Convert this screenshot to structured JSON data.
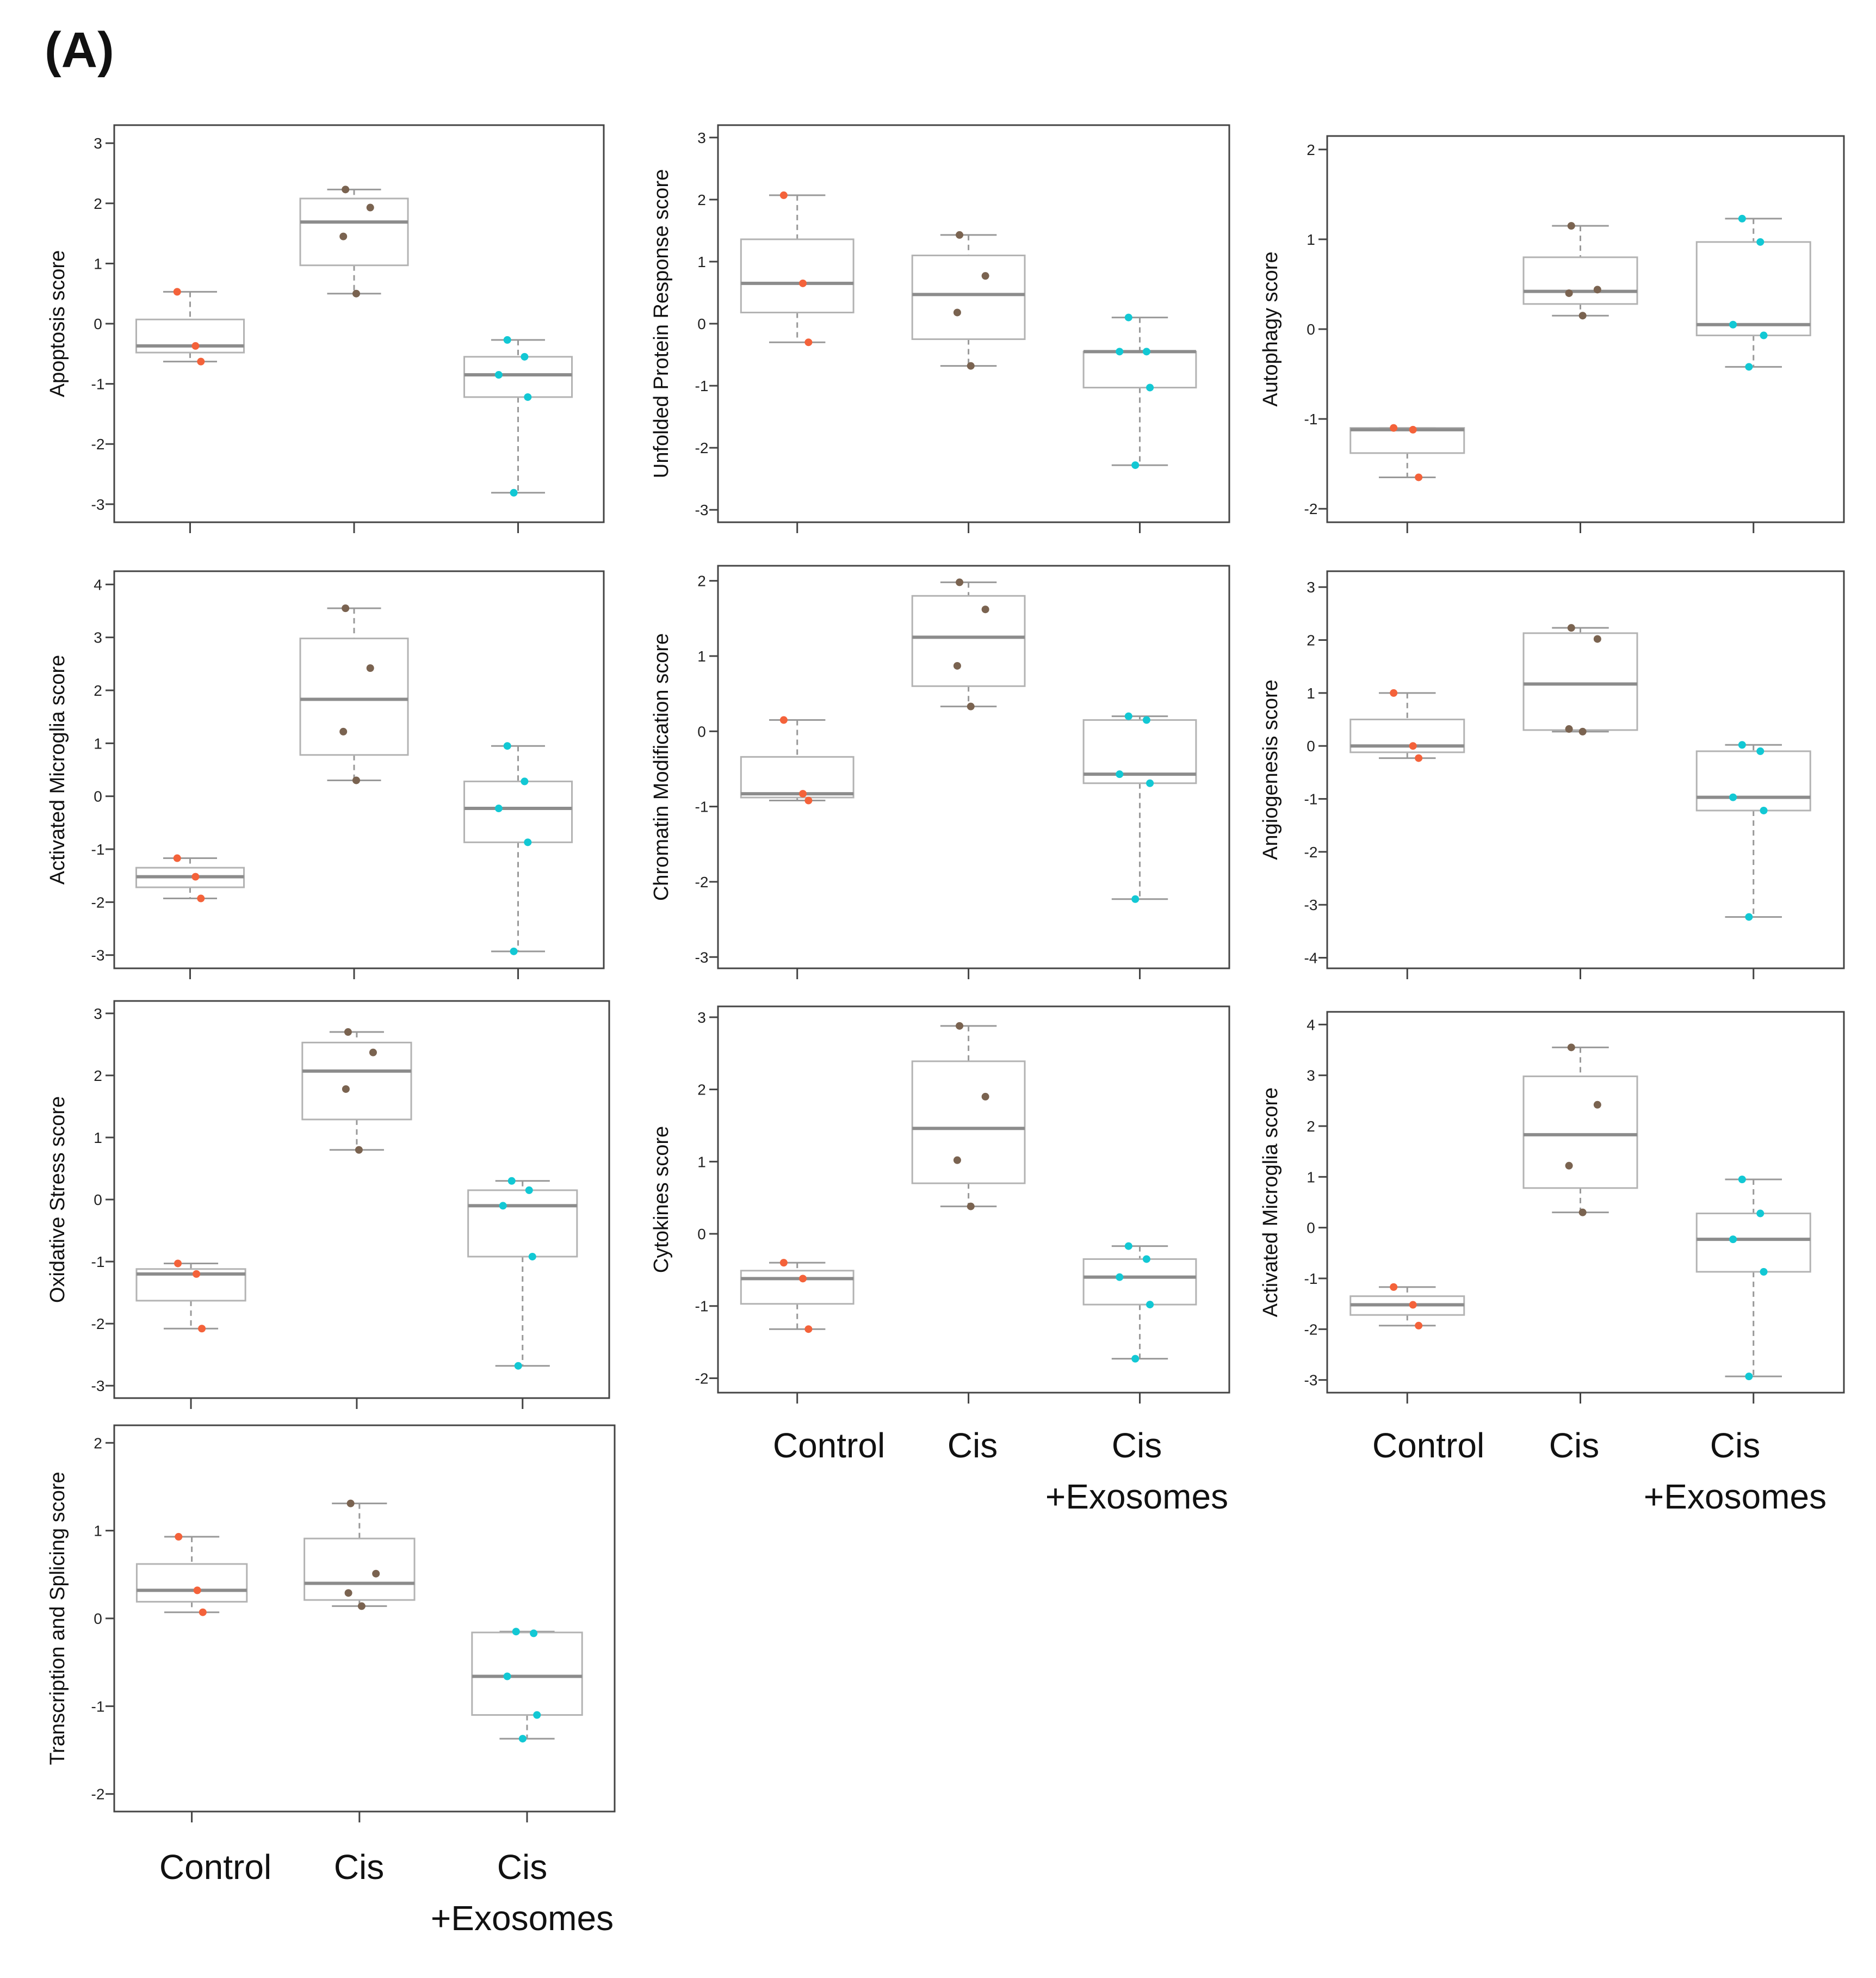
{
  "figure_label": "(A)",
  "colors": {
    "control": "#f4623a",
    "cis": "#7a6350",
    "exo": "#12c8d4",
    "box": "#b3b3b3",
    "median": "#8c8c8c",
    "axis": "#444444"
  },
  "category_labels": {
    "control": "Control",
    "cis": "Cis",
    "exo_line1": "Cis",
    "exo_line2": "+Exosomes"
  },
  "chart_data": [
    {
      "type": "box",
      "ylabel": "Apoptosis score",
      "yticks": [
        -3,
        -2,
        -1,
        0,
        1,
        2,
        3
      ],
      "ylim": [
        -3.3,
        3.3
      ],
      "categories": [
        "Control",
        "Cis",
        "Cis +Exosomes"
      ],
      "groups": [
        {
          "name": "Control",
          "points": [
            0.53,
            -0.37,
            -0.63
          ],
          "q1": -0.48,
          "median": -0.37,
          "q3": 0.07,
          "whisker_low": -0.63,
          "whisker_high": 0.53
        },
        {
          "name": "Cis",
          "points": [
            2.23,
            1.93,
            1.45,
            0.5
          ],
          "q1": 0.97,
          "median": 1.69,
          "q3": 2.08,
          "whisker_low": 0.5,
          "whisker_high": 2.23
        },
        {
          "name": "Cis +Exosomes",
          "points": [
            -0.27,
            -0.55,
            -0.85,
            -1.22,
            -2.81
          ],
          "q1": -1.22,
          "median": -0.85,
          "q3": -0.55,
          "whisker_low": -2.81,
          "whisker_high": -0.27
        }
      ]
    },
    {
      "type": "box",
      "ylabel": "Unfolded Protein Response score",
      "yticks": [
        -3,
        -2,
        -1,
        0,
        1,
        2,
        3
      ],
      "ylim": [
        -3.2,
        3.2
      ],
      "categories": [
        "Control",
        "Cis",
        "Cis +Exosomes"
      ],
      "groups": [
        {
          "name": "Control",
          "points": [
            2.07,
            0.65,
            -0.3
          ],
          "q1": 0.18,
          "median": 0.65,
          "q3": 1.36,
          "whisker_low": -0.3,
          "whisker_high": 2.07
        },
        {
          "name": "Cis",
          "points": [
            1.43,
            0.77,
            0.18,
            -0.68
          ],
          "q1": -0.25,
          "median": 0.47,
          "q3": 1.1,
          "whisker_low": -0.68,
          "whisker_high": 1.43
        },
        {
          "name": "Cis +Exosomes",
          "points": [
            0.1,
            -0.45,
            -0.45,
            -1.03,
            -2.28
          ],
          "q1": -1.03,
          "median": -0.45,
          "q3": -0.45,
          "whisker_low": -2.28,
          "whisker_high": 0.1
        }
      ]
    },
    {
      "type": "box",
      "ylabel": "Autophagy score",
      "yticks": [
        -2,
        -1,
        0,
        1,
        2
      ],
      "ylim": [
        -2.15,
        2.15
      ],
      "categories": [
        "Control",
        "Cis",
        "Cis +Exosomes"
      ],
      "groups": [
        {
          "name": "Control",
          "points": [
            -1.1,
            -1.12,
            -1.65
          ],
          "q1": -1.38,
          "median": -1.12,
          "q3": -1.1,
          "whisker_low": -1.65,
          "whisker_high": -1.1
        },
        {
          "name": "Cis",
          "points": [
            1.15,
            0.44,
            0.4,
            0.15
          ],
          "q1": 0.28,
          "median": 0.42,
          "q3": 0.8,
          "whisker_low": 0.15,
          "whisker_high": 1.15
        },
        {
          "name": "Cis +Exosomes",
          "points": [
            1.23,
            0.97,
            0.05,
            -0.07,
            -0.42
          ],
          "q1": -0.07,
          "median": 0.05,
          "q3": 0.97,
          "whisker_low": -0.42,
          "whisker_high": 1.23
        }
      ]
    },
    {
      "type": "box",
      "ylabel": "Activated Microglia score",
      "yticks": [
        -3,
        -2,
        -1,
        0,
        1,
        2,
        3,
        4
      ],
      "ylim": [
        -3.25,
        4.25
      ],
      "categories": [
        "Control",
        "Cis",
        "Cis +Exosomes"
      ],
      "groups": [
        {
          "name": "Control",
          "points": [
            -1.17,
            -1.52,
            -1.93
          ],
          "q1": -1.72,
          "median": -1.52,
          "q3": -1.35,
          "whisker_low": -1.93,
          "whisker_high": -1.17
        },
        {
          "name": "Cis",
          "points": [
            3.55,
            2.42,
            1.22,
            0.3
          ],
          "q1": 0.78,
          "median": 1.83,
          "q3": 2.98,
          "whisker_low": 0.3,
          "whisker_high": 3.55
        },
        {
          "name": "Cis +Exosomes",
          "points": [
            0.95,
            0.28,
            -0.23,
            -0.87,
            -2.93
          ],
          "q1": -0.87,
          "median": -0.23,
          "q3": 0.28,
          "whisker_low": -2.93,
          "whisker_high": 0.95
        }
      ]
    },
    {
      "type": "box",
      "ylabel": "Chromatin Modification score",
      "yticks": [
        -3,
        -2,
        -1,
        0,
        1,
        2
      ],
      "ylim": [
        -3.15,
        2.2
      ],
      "categories": [
        "Control",
        "Cis",
        "Cis +Exosomes"
      ],
      "groups": [
        {
          "name": "Control",
          "points": [
            0.15,
            -0.83,
            -0.92
          ],
          "q1": -0.88,
          "median": -0.83,
          "q3": -0.34,
          "whisker_low": -0.92,
          "whisker_high": 0.15
        },
        {
          "name": "Cis",
          "points": [
            1.98,
            1.62,
            0.87,
            0.33
          ],
          "q1": 0.6,
          "median": 1.25,
          "q3": 1.8,
          "whisker_low": 0.33,
          "whisker_high": 1.98
        },
        {
          "name": "Cis +Exosomes",
          "points": [
            0.2,
            0.15,
            -0.57,
            -0.69,
            -2.23
          ],
          "q1": -0.69,
          "median": -0.57,
          "q3": 0.15,
          "whisker_low": -2.23,
          "whisker_high": 0.2
        }
      ]
    },
    {
      "type": "box",
      "ylabel": "Angiogenesis score",
      "yticks": [
        -4,
        -3,
        -2,
        -1,
        0,
        1,
        2,
        3
      ],
      "ylim": [
        -4.2,
        3.3
      ],
      "categories": [
        "Control",
        "Cis",
        "Cis +Exosomes"
      ],
      "groups": [
        {
          "name": "Control",
          "points": [
            1.0,
            0.0,
            -0.23
          ],
          "q1": -0.12,
          "median": 0.0,
          "q3": 0.5,
          "whisker_low": -0.23,
          "whisker_high": 1.0
        },
        {
          "name": "Cis",
          "points": [
            2.23,
            2.02,
            0.32,
            0.27
          ],
          "q1": 0.3,
          "median": 1.17,
          "q3": 2.13,
          "whisker_low": 0.27,
          "whisker_high": 2.23
        },
        {
          "name": "Cis +Exosomes",
          "points": [
            0.02,
            -0.1,
            -0.97,
            -1.22,
            -3.23
          ],
          "q1": -1.22,
          "median": -0.97,
          "q3": -0.1,
          "whisker_low": -3.23,
          "whisker_high": 0.02
        }
      ]
    },
    {
      "type": "box",
      "ylabel": "Oxidative Stress score",
      "yticks": [
        -3,
        -2,
        -1,
        0,
        1,
        2,
        3
      ],
      "ylim": [
        -3.2,
        3.2
      ],
      "categories": [
        "Control",
        "Cis",
        "Cis +Exosomes"
      ],
      "groups": [
        {
          "name": "Control",
          "points": [
            -1.03,
            -1.2,
            -2.08
          ],
          "q1": -1.63,
          "median": -1.2,
          "q3": -1.12,
          "whisker_low": -2.08,
          "whisker_high": -1.03
        },
        {
          "name": "Cis",
          "points": [
            2.7,
            2.37,
            1.78,
            0.8
          ],
          "q1": 1.29,
          "median": 2.07,
          "q3": 2.53,
          "whisker_low": 0.8,
          "whisker_high": 2.7
        },
        {
          "name": "Cis +Exosomes",
          "points": [
            0.3,
            0.15,
            -0.1,
            -0.92,
            -2.68
          ],
          "q1": -0.92,
          "median": -0.1,
          "q3": 0.15,
          "whisker_low": -2.68,
          "whisker_high": 0.3
        }
      ]
    },
    {
      "type": "box",
      "ylabel": "Cytokines score",
      "yticks": [
        -2,
        -1,
        0,
        1,
        2,
        3
      ],
      "ylim": [
        -2.2,
        3.15
      ],
      "categories": [
        "Control",
        "Cis",
        "Cis +Exosomes"
      ],
      "groups": [
        {
          "name": "Control",
          "points": [
            -0.4,
            -0.62,
            -1.32
          ],
          "q1": -0.97,
          "median": -0.62,
          "q3": -0.51,
          "whisker_low": -1.32,
          "whisker_high": -0.4
        },
        {
          "name": "Cis",
          "points": [
            2.88,
            1.9,
            1.02,
            0.38
          ],
          "q1": 0.7,
          "median": 1.46,
          "q3": 2.39,
          "whisker_low": 0.38,
          "whisker_high": 2.88
        },
        {
          "name": "Cis +Exosomes",
          "points": [
            -0.17,
            -0.35,
            -0.6,
            -0.98,
            -1.73
          ],
          "q1": -0.98,
          "median": -0.6,
          "q3": -0.35,
          "whisker_low": -1.73,
          "whisker_high": -0.17
        }
      ]
    },
    {
      "type": "box",
      "ylabel": "Activated Microglia score",
      "yticks": [
        -3,
        -2,
        -1,
        0,
        1,
        2,
        3,
        4
      ],
      "ylim": [
        -3.25,
        4.25
      ],
      "categories": [
        "Control",
        "Cis",
        "Cis +Exosomes"
      ],
      "groups": [
        {
          "name": "Control",
          "points": [
            -1.17,
            -1.52,
            -1.93
          ],
          "q1": -1.72,
          "median": -1.52,
          "q3": -1.35,
          "whisker_low": -1.93,
          "whisker_high": -1.17
        },
        {
          "name": "Cis",
          "points": [
            3.55,
            2.42,
            1.22,
            0.3
          ],
          "q1": 0.78,
          "median": 1.83,
          "q3": 2.98,
          "whisker_low": 0.3,
          "whisker_high": 3.55
        },
        {
          "name": "Cis +Exosomes",
          "points": [
            0.95,
            0.28,
            -0.23,
            -0.87,
            -2.93
          ],
          "q1": -0.87,
          "median": -0.23,
          "q3": 0.28,
          "whisker_low": -2.93,
          "whisker_high": 0.95
        }
      ]
    },
    {
      "type": "box",
      "ylabel": "Transcription and Splicing score",
      "yticks": [
        -2,
        -1,
        0,
        1,
        2
      ],
      "ylim": [
        -2.2,
        2.2
      ],
      "categories": [
        "Control",
        "Cis",
        "Cis +Exosomes"
      ],
      "groups": [
        {
          "name": "Control",
          "points": [
            0.93,
            0.32,
            0.07
          ],
          "q1": 0.19,
          "median": 0.32,
          "q3": 0.62,
          "whisker_low": 0.07,
          "whisker_high": 0.93
        },
        {
          "name": "Cis",
          "points": [
            1.31,
            0.51,
            0.29,
            0.14
          ],
          "q1": 0.21,
          "median": 0.4,
          "q3": 0.91,
          "whisker_low": 0.14,
          "whisker_high": 1.31
        },
        {
          "name": "Cis +Exosomes",
          "points": [
            -0.15,
            -0.17,
            -0.66,
            -1.1,
            -1.37
          ],
          "q1": -1.1,
          "median": -0.66,
          "q3": -0.16,
          "whisker_low": -1.37,
          "whisker_high": -0.15
        }
      ]
    }
  ]
}
